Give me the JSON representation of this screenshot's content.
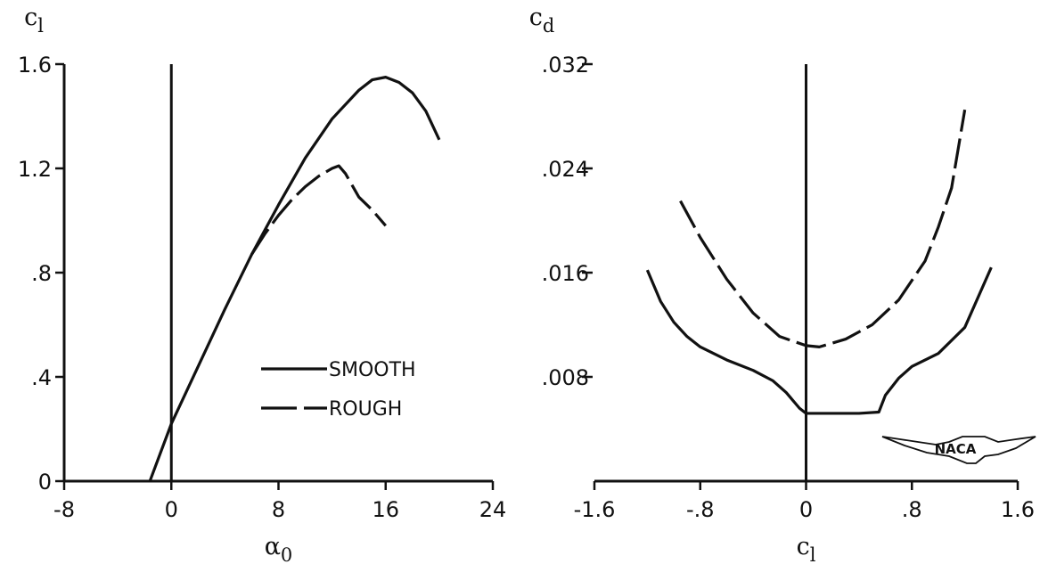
{
  "chart_data": [
    {
      "type": "line",
      "title": "",
      "xlabel": "α",
      "xlabel_sub": "0",
      "ylabel": "c",
      "ylabel_sub": "l",
      "xlim": [
        -8,
        24
      ],
      "ylim": [
        0,
        1.6
      ],
      "x_ticks": [
        -8,
        0,
        8,
        16,
        24
      ],
      "x_tick_labels": [
        "-8",
        "0",
        "8",
        "16",
        "24"
      ],
      "y_ticks": [
        0,
        0.4,
        0.8,
        1.2,
        1.6
      ],
      "y_tick_labels": [
        "0",
        ".4",
        ".8",
        "1.2",
        "1.6"
      ],
      "grid": false,
      "legend_position": "lower-right",
      "legend": [
        {
          "label": "SMOOTH",
          "style": "solid"
        },
        {
          "label": "ROUGH",
          "style": "dashed"
        }
      ],
      "series": [
        {
          "name": "SMOOTH",
          "style": "solid",
          "x": [
            -1.6,
            0,
            2,
            4,
            6,
            8,
            10,
            12,
            14,
            15,
            16,
            17,
            18,
            19,
            20
          ],
          "y": [
            0,
            0.22,
            0.44,
            0.66,
            0.87,
            1.06,
            1.24,
            1.39,
            1.5,
            1.54,
            1.55,
            1.53,
            1.49,
            1.42,
            1.31
          ]
        },
        {
          "name": "ROUGH",
          "style": "dashed",
          "x": [
            6,
            7,
            8,
            9,
            10,
            11,
            12,
            12.5,
            13,
            14,
            15,
            16
          ],
          "y": [
            0.87,
            0.95,
            1.02,
            1.08,
            1.13,
            1.17,
            1.2,
            1.21,
            1.18,
            1.09,
            1.04,
            0.98
          ]
        }
      ]
    },
    {
      "type": "line",
      "title": "",
      "xlabel": "c",
      "xlabel_sub": "l",
      "ylabel": "c",
      "ylabel_sub": "d",
      "xlim": [
        -1.6,
        1.6
      ],
      "ylim": [
        0,
        0.032
      ],
      "x_ticks": [
        -1.6,
        -0.8,
        0,
        0.8,
        1.6
      ],
      "x_tick_labels": [
        "-1.6",
        "-.8",
        "0",
        ".8",
        "1.6"
      ],
      "y_ticks": [
        0.008,
        0.016,
        0.024,
        0.032
      ],
      "y_tick_labels": [
        ".008",
        ".016",
        ".024",
        ".032"
      ],
      "grid": false,
      "series": [
        {
          "name": "SMOOTH",
          "style": "solid",
          "x": [
            -1.2,
            -1.1,
            -1.0,
            -0.9,
            -0.8,
            -0.6,
            -0.4,
            -0.25,
            -0.15,
            -0.05,
            0,
            0.2,
            0.4,
            0.55,
            0.6,
            0.7,
            0.8,
            1.0,
            1.2,
            1.4
          ],
          "y": [
            0.0162,
            0.0138,
            0.0122,
            0.0111,
            0.0103,
            0.0093,
            0.0085,
            0.0077,
            0.0068,
            0.0056,
            0.0052,
            0.0052,
            0.0052,
            0.0053,
            0.0066,
            0.0079,
            0.0088,
            0.0098,
            0.0118,
            0.0164
          ]
        },
        {
          "name": "ROUGH",
          "style": "dashed",
          "x": [
            -0.95,
            -0.8,
            -0.6,
            -0.4,
            -0.2,
            0,
            0.1,
            0.3,
            0.5,
            0.7,
            0.9,
            1.0,
            1.1,
            1.2
          ],
          "y": [
            0.0215,
            0.0187,
            0.0155,
            0.0129,
            0.0111,
            0.0104,
            0.0103,
            0.0109,
            0.012,
            0.0139,
            0.0169,
            0.0195,
            0.0225,
            0.0285
          ]
        }
      ]
    }
  ]
}
